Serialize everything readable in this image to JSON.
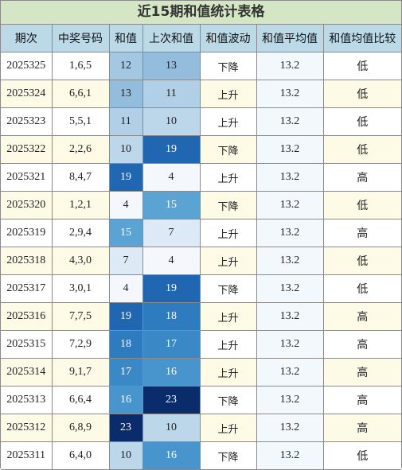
{
  "title": "近15期和值统计表格",
  "columns": [
    "期次",
    "中奖号码",
    "和值",
    "上次和值",
    "和值波动",
    "和值平均值",
    "和值均值比较"
  ],
  "rows": [
    {
      "period": "2025325",
      "numbers": "1,6,5",
      "sum": "12",
      "prev_sum": "13",
      "trend": "下降",
      "avg": "13.2",
      "compare": "低"
    },
    {
      "period": "2025324",
      "numbers": "6,6,1",
      "sum": "13",
      "prev_sum": "11",
      "trend": "上升",
      "avg": "13.2",
      "compare": "低"
    },
    {
      "period": "2025323",
      "numbers": "5,5,1",
      "sum": "11",
      "prev_sum": "10",
      "trend": "上升",
      "avg": "13.2",
      "compare": "低"
    },
    {
      "period": "2025322",
      "numbers": "2,2,6",
      "sum": "10",
      "prev_sum": "19",
      "trend": "下降",
      "avg": "13.2",
      "compare": "低"
    },
    {
      "period": "2025321",
      "numbers": "8,4,7",
      "sum": "19",
      "prev_sum": "4",
      "trend": "上升",
      "avg": "13.2",
      "compare": "高"
    },
    {
      "period": "2025320",
      "numbers": "1,2,1",
      "sum": "4",
      "prev_sum": "15",
      "trend": "下降",
      "avg": "13.2",
      "compare": "低"
    },
    {
      "period": "2025319",
      "numbers": "2,9,4",
      "sum": "15",
      "prev_sum": "7",
      "trend": "上升",
      "avg": "13.2",
      "compare": "高"
    },
    {
      "period": "2025318",
      "numbers": "4,3,0",
      "sum": "7",
      "prev_sum": "4",
      "trend": "上升",
      "avg": "13.2",
      "compare": "低"
    },
    {
      "period": "2025317",
      "numbers": "3,0,1",
      "sum": "4",
      "prev_sum": "19",
      "trend": "下降",
      "avg": "13.2",
      "compare": "低"
    },
    {
      "period": "2025316",
      "numbers": "7,7,5",
      "sum": "19",
      "prev_sum": "18",
      "trend": "上升",
      "avg": "13.2",
      "compare": "高"
    },
    {
      "period": "2025315",
      "numbers": "7,2,9",
      "sum": "18",
      "prev_sum": "17",
      "trend": "上升",
      "avg": "13.2",
      "compare": "高"
    },
    {
      "period": "2025314",
      "numbers": "9,1,7",
      "sum": "17",
      "prev_sum": "16",
      "trend": "上升",
      "avg": "13.2",
      "compare": "高"
    },
    {
      "period": "2025313",
      "numbers": "6,6,4",
      "sum": "16",
      "prev_sum": "23",
      "trend": "下降",
      "avg": "13.2",
      "compare": "高"
    },
    {
      "period": "2025312",
      "numbers": "6,8,9",
      "sum": "23",
      "prev_sum": "10",
      "trend": "上升",
      "avg": "13.2",
      "compare": "高"
    },
    {
      "period": "2025311",
      "numbers": "6,4,0",
      "sum": "10",
      "prev_sum": "16",
      "trend": "下降",
      "avg": "13.2",
      "compare": "低"
    }
  ],
  "heat_scale": {
    "4": "#f4f8fc",
    "7": "#dce9f6",
    "10": "#bcd6ea",
    "11": "#b1cfe6",
    "12": "#a4c7e2",
    "13": "#94bcdd",
    "15": "#5ba3d3",
    "16": "#4894cc",
    "17": "#3b88c6",
    "18": "#2f7bbf",
    "19": "#2166b0",
    "23": "#0a2c6a"
  },
  "dark_text_color": "#222222",
  "light_text_color": "#ffffff"
}
